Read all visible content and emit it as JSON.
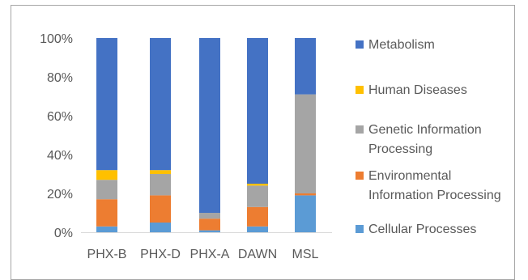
{
  "chart_data": {
    "type": "bar",
    "stacked": "percent",
    "categories": [
      "PHX-B",
      "PHX-D",
      "PHX-A",
      "DAWN",
      "MSL"
    ],
    "y_ticks": [
      "0%",
      "20%",
      "40%",
      "60%",
      "80%",
      "100%"
    ],
    "ylim": [
      0,
      100
    ],
    "series": [
      {
        "name": "Cellular Processes",
        "color": "#5B9BD5",
        "values": [
          3,
          5,
          1,
          3,
          19
        ]
      },
      {
        "name": "Environmental Information Processing",
        "color": "#ED7D31",
        "values": [
          14,
          14,
          6,
          10,
          1
        ]
      },
      {
        "name": "Genetic Information Processing",
        "color": "#A5A5A5",
        "values": [
          10,
          11,
          3,
          11,
          51
        ]
      },
      {
        "name": "Human Diseases",
        "color": "#FFC000",
        "values": [
          5,
          2,
          0,
          1,
          0
        ]
      },
      {
        "name": "Metabolism",
        "color": "#4472C4",
        "values": [
          68,
          68,
          90,
          75,
          29
        ]
      }
    ],
    "legend_position": "right",
    "legend": [
      {
        "series": "Metabolism",
        "lines": [
          "Metabolism"
        ]
      },
      {
        "series": "Human Diseases",
        "lines": [
          "Human Diseases"
        ]
      },
      {
        "series": "Genetic Information Processing",
        "lines": [
          "Genetic Information",
          "Processing"
        ]
      },
      {
        "series": "Environmental Information Processing",
        "lines": [
          "Environmental",
          "Information Processing"
        ]
      },
      {
        "series": "Cellular Processes",
        "lines": [
          "Cellular Processes"
        ]
      }
    ],
    "grid": false
  }
}
